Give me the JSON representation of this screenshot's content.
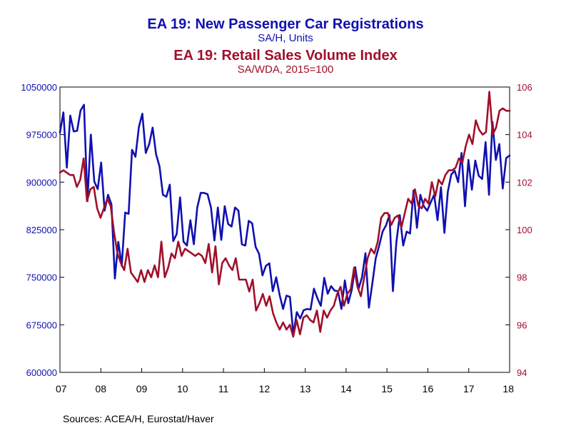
{
  "chart_data": {
    "type": "line",
    "title": "EA 19: New Passenger Car Registrations",
    "subtitle": "SA/H, Units",
    "title2": "EA 19: Retail Sales Volume Index",
    "subtitle2": "SA/WDA, 2015=100",
    "source": "Sources:  ACEA/H, Eurostat/Haver",
    "grid": false,
    "legend": "none",
    "x_axis": {
      "start": 2007.0,
      "end": 2018.0,
      "tick_labels": [
        "07",
        "08",
        "09",
        "10",
        "11",
        "12",
        "13",
        "14",
        "15",
        "16",
        "17",
        "18"
      ]
    },
    "y_left": {
      "ylim": [
        600000,
        1050000
      ],
      "ticks": [
        600000,
        675000,
        750000,
        825000,
        900000,
        975000,
        1050000
      ],
      "tick_labels": [
        "600000",
        "675000",
        "750000",
        "825000",
        "900000",
        "975000",
        "1050000"
      ],
      "color": "#1010b0"
    },
    "y_right": {
      "ylim": [
        94,
        106
      ],
      "ticks": [
        94,
        96,
        98,
        100,
        102,
        104,
        106
      ],
      "tick_labels": [
        "94",
        "96",
        "98",
        "100",
        "102",
        "104",
        "106"
      ],
      "color": "#a0102a"
    },
    "series": [
      {
        "axis": "left",
        "color": "#1010b0",
        "values": [
          978000,
          1010000,
          923000,
          1005000,
          980000,
          981000,
          1013000,
          1022000,
          870000,
          975000,
          901000,
          889000,
          931000,
          855000,
          880000,
          865000,
          748000,
          806000,
          768000,
          852000,
          850000,
          951000,
          940000,
          987000,
          1008000,
          946000,
          960000,
          986000,
          944000,
          925000,
          880000,
          877000,
          896000,
          807000,
          818000,
          876000,
          806000,
          800000,
          840000,
          802000,
          860000,
          883000,
          883000,
          881000,
          860000,
          808000,
          860000,
          809000,
          862000,
          834000,
          830000,
          860000,
          855000,
          802000,
          800000,
          839000,
          835000,
          798000,
          787000,
          753000,
          768000,
          772000,
          728000,
          750000,
          722000,
          700000,
          721000,
          719000,
          660000,
          695000,
          685000,
          698000,
          700000,
          699000,
          732000,
          717000,
          705000,
          749000,
          724000,
          736000,
          729000,
          728000,
          700000,
          745000,
          709000,
          730000,
          766000,
          732000,
          750000,
          788000,
          702000,
          740000,
          780000,
          800000,
          822000,
          832000,
          848000,
          728000,
          805000,
          848000,
          800000,
          822000,
          819000,
          887000,
          828000,
          880000,
          862000,
          855000,
          868000,
          880000,
          840000,
          892000,
          820000,
          885000,
          912000,
          918000,
          900000,
          946000,
          862000,
          935000,
          888000,
          934000,
          910000,
          905000,
          963000,
          880000,
          995000,
          935000,
          960000,
          890000,
          938000,
          942000
        ]
      },
      {
        "axis": "right",
        "color": "#a0102a",
        "values": [
          102.4,
          102.5,
          102.4,
          102.3,
          102.3,
          101.8,
          102.1,
          103.0,
          101.2,
          101.7,
          101.8,
          100.9,
          100.5,
          100.9,
          101.3,
          101.0,
          99.9,
          99.0,
          98.6,
          98.3,
          99.2,
          98.2,
          98.0,
          97.8,
          98.3,
          97.8,
          98.3,
          98.0,
          98.5,
          98.0,
          99.5,
          98.0,
          98.4,
          99.0,
          98.8,
          99.5,
          98.9,
          99.2,
          99.1,
          99.0,
          98.9,
          99.0,
          98.9,
          98.6,
          99.4,
          98.2,
          99.3,
          97.7,
          98.6,
          98.8,
          98.5,
          98.3,
          98.8,
          97.9,
          97.9,
          97.9,
          97.4,
          97.9,
          96.6,
          96.9,
          97.3,
          96.8,
          97.2,
          96.5,
          96.1,
          95.8,
          96.1,
          95.8,
          96.0,
          95.5,
          96.2,
          95.6,
          96.3,
          96.4,
          96.2,
          96.1,
          96.6,
          95.7,
          96.6,
          96.3,
          96.6,
          96.8,
          97.3,
          97.6,
          96.8,
          97.3,
          97.5,
          98.4,
          97.6,
          97.2,
          98.0,
          98.8,
          99.2,
          99.0,
          99.5,
          100.5,
          100.7,
          100.7,
          100.2,
          100.5,
          100.6,
          100.1,
          100.7,
          101.3,
          101.1,
          101.7,
          101.0,
          100.9,
          101.3,
          101.1,
          102.0,
          101.4,
          102.1,
          101.9,
          102.3,
          102.5,
          102.5,
          102.6,
          103.0,
          102.8,
          103.5,
          104.0,
          103.6,
          104.6,
          104.2,
          104.0,
          104.1,
          105.8,
          104.0,
          104.3,
          105.0,
          105.1,
          105.0,
          105.0
        ]
      }
    ]
  }
}
